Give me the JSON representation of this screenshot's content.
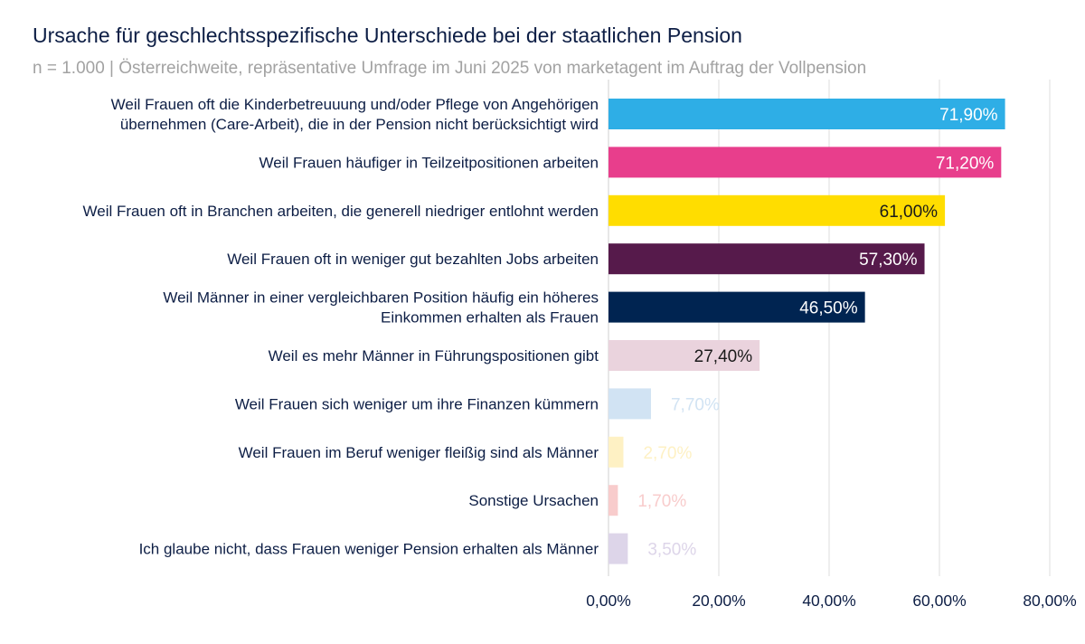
{
  "chart_data": {
    "type": "bar",
    "orientation": "horizontal",
    "title": "Ursache für geschlechtsspezifische Unterschiede bei der staatlichen Pension",
    "subtitle": "n = 1.000 | Österreichweite, repräsentative Umfrage im Juni 2025 von marketagent im Auftrag der Vollpension",
    "categories": [
      [
        "Weil Frauen oft die Kinderbetreuuung und/oder Pflege von Angehörigen",
        "übernehmen (Care-Arbeit), die in der Pension nicht berücksichtigt wird"
      ],
      [
        "Weil Frauen häufiger in Teilzeitpositionen arbeiten"
      ],
      [
        "Weil Frauen oft in Branchen arbeiten, die generell niedriger entlohnt werden"
      ],
      [
        "Weil Frauen oft in weniger gut bezahlten Jobs arbeiten"
      ],
      [
        "Weil Männer in einer vergleichbaren Position häufig ein höheres",
        "Einkommen erhalten als Frauen"
      ],
      [
        "Weil es mehr Männer in Führungspositionen gibt"
      ],
      [
        "Weil Frauen sich weniger um ihre Finanzen kümmern"
      ],
      [
        "Weil Frauen im Beruf weniger fleißig sind als Männer"
      ],
      [
        "Sonstige Ursachen"
      ],
      [
        "Ich glaube nicht, dass Frauen weniger Pension erhalten als Männer"
      ]
    ],
    "values": [
      71.9,
      71.2,
      61.0,
      57.3,
      46.5,
      27.4,
      7.7,
      2.7,
      1.7,
      3.5
    ],
    "value_labels": [
      "71,90%",
      "71,20%",
      "61,00%",
      "57,30%",
      "46,50%",
      "27,40%",
      "7,70%",
      "2,70%",
      "1,70%",
      "3,50%"
    ],
    "colors": [
      "#2eaee6",
      "#e83e8c",
      "#ffdd00",
      "#561a4b",
      "#002451",
      "#ead3dd",
      "#d1e3f3",
      "#fef1c4",
      "#f8cccc",
      "#ddd5e9"
    ],
    "label_colors": [
      "#ffffff",
      "#ffffff",
      "#1a1a1a",
      "#ffffff",
      "#ffffff",
      "#1a1a1a",
      "#d1e3f3",
      "#fef1c4",
      "#f8cccc",
      "#ddd5e9"
    ],
    "label_inside": [
      true,
      true,
      true,
      true,
      true,
      true,
      false,
      false,
      false,
      false
    ],
    "xlim": [
      0,
      80
    ],
    "x_ticks": [
      0,
      20,
      40,
      60,
      80
    ],
    "x_tick_labels": [
      "0,00%",
      "20,00%",
      "40,00%",
      "60,00%",
      "80,00%"
    ],
    "grid": true,
    "legend": "none"
  }
}
